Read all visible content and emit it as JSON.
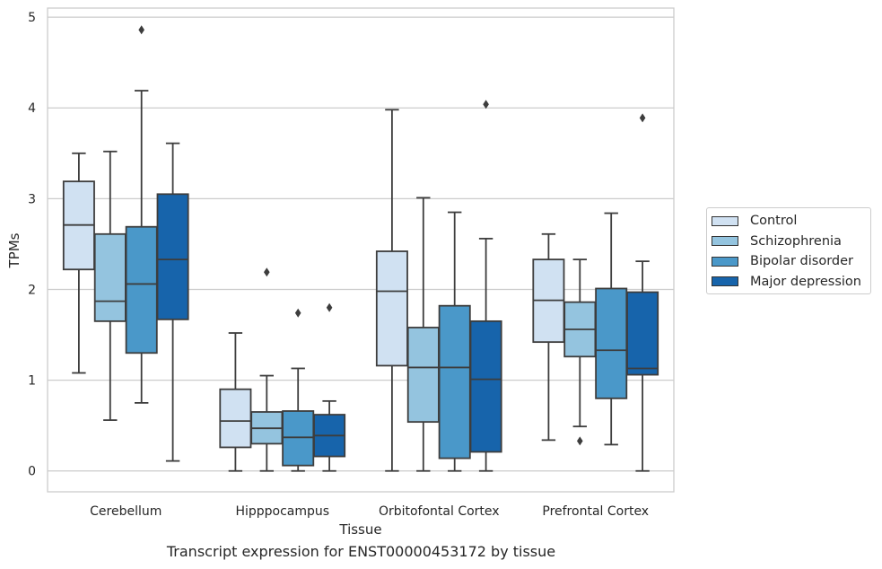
{
  "chart_data": {
    "type": "box",
    "title": "",
    "xlabel": "Tissue",
    "ylabel": "TPMs",
    "caption": "Transcript expression for ENST00000453172 by tissue",
    "ylim": [
      -0.23,
      5.1
    ],
    "yticks": [
      0,
      1,
      2,
      3,
      4,
      5
    ],
    "grid": "horizontal",
    "legend_position": "right",
    "categories": [
      "Cerebellum",
      "Hipppocampus",
      "Orbitofontal Cortex",
      "Prefrontal Cortex"
    ],
    "series": [
      {
        "name": "Control",
        "color": "#d0e1f2",
        "boxes": [
          {
            "whislo": 1.08,
            "q1": 2.22,
            "med": 2.71,
            "q3": 3.19,
            "whishi": 3.5,
            "fliers": []
          },
          {
            "whislo": 0.0,
            "q1": 0.26,
            "med": 0.55,
            "q3": 0.9,
            "whishi": 1.52,
            "fliers": []
          },
          {
            "whislo": 0.0,
            "q1": 1.16,
            "med": 1.98,
            "q3": 2.42,
            "whishi": 3.98,
            "fliers": []
          },
          {
            "whislo": 0.34,
            "q1": 1.42,
            "med": 1.88,
            "q3": 2.33,
            "whishi": 2.61,
            "fliers": []
          }
        ]
      },
      {
        "name": "Schizophrenia",
        "color": "#94c4df",
        "boxes": [
          {
            "whislo": 0.56,
            "q1": 1.65,
            "med": 1.87,
            "q3": 2.61,
            "whishi": 3.52,
            "fliers": []
          },
          {
            "whislo": 0.0,
            "q1": 0.3,
            "med": 0.47,
            "q3": 0.65,
            "whishi": 1.05,
            "fliers": [
              2.19
            ]
          },
          {
            "whislo": 0.0,
            "q1": 0.54,
            "med": 1.14,
            "q3": 1.58,
            "whishi": 3.01,
            "fliers": []
          },
          {
            "whislo": 0.49,
            "q1": 1.26,
            "med": 1.56,
            "q3": 1.86,
            "whishi": 2.33,
            "fliers": [
              0.33
            ]
          }
        ]
      },
      {
        "name": "Bipolar disorder",
        "color": "#4a98c9",
        "boxes": [
          {
            "whislo": 0.75,
            "q1": 1.3,
            "med": 2.06,
            "q3": 2.69,
            "whishi": 4.19,
            "fliers": [
              4.86
            ]
          },
          {
            "whislo": 0.0,
            "q1": 0.06,
            "med": 0.37,
            "q3": 0.66,
            "whishi": 1.13,
            "fliers": [
              1.74
            ]
          },
          {
            "whislo": 0.0,
            "q1": 0.14,
            "med": 1.14,
            "q3": 1.82,
            "whishi": 2.85,
            "fliers": []
          },
          {
            "whislo": 0.29,
            "q1": 0.8,
            "med": 1.33,
            "q3": 2.01,
            "whishi": 2.84,
            "fliers": []
          }
        ]
      },
      {
        "name": "Major depression",
        "color": "#1764ab",
        "boxes": [
          {
            "whislo": 0.11,
            "q1": 1.67,
            "med": 2.33,
            "q3": 3.05,
            "whishi": 3.61,
            "fliers": []
          },
          {
            "whislo": 0.0,
            "q1": 0.16,
            "med": 0.39,
            "q3": 0.62,
            "whishi": 0.77,
            "fliers": [
              1.8
            ]
          },
          {
            "whislo": 0.0,
            "q1": 0.21,
            "med": 1.01,
            "q3": 1.65,
            "whishi": 2.56,
            "fliers": [
              4.04
            ]
          },
          {
            "whislo": 0.0,
            "q1": 1.06,
            "med": 1.13,
            "q3": 1.97,
            "whishi": 2.31,
            "fliers": [
              3.89
            ]
          }
        ]
      }
    ]
  }
}
